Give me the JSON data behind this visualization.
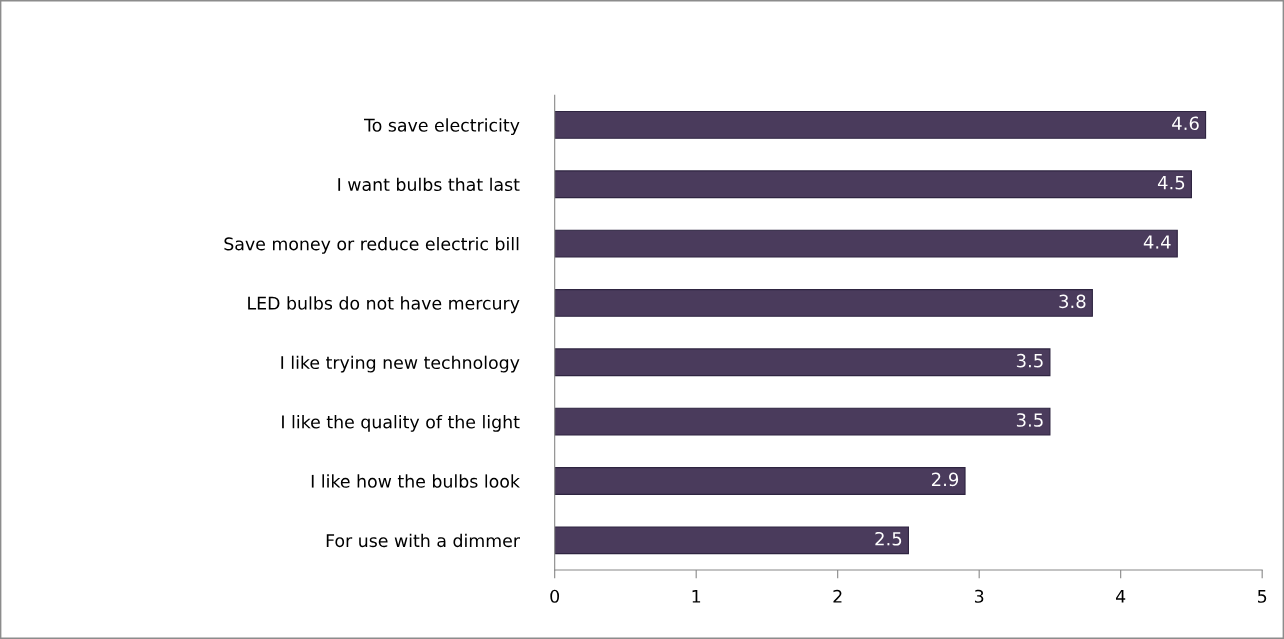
{
  "chart_data": {
    "type": "bar",
    "orientation": "horizontal",
    "categories": [
      "To save electricity",
      "I want bulbs that last",
      "Save money or reduce electric bill",
      "LED bulbs do not have mercury",
      "I like trying new technology",
      "I like the quality of the light",
      "I like how the bulbs look",
      "For use with a dimmer"
    ],
    "values": [
      4.6,
      4.5,
      4.4,
      3.8,
      3.5,
      3.5,
      2.9,
      2.5
    ],
    "color": "#4a3b5c",
    "xlim": [
      0,
      5
    ],
    "xticks": [
      0,
      1,
      2,
      3,
      4,
      5
    ],
    "grid": false,
    "data_labels": true
  }
}
